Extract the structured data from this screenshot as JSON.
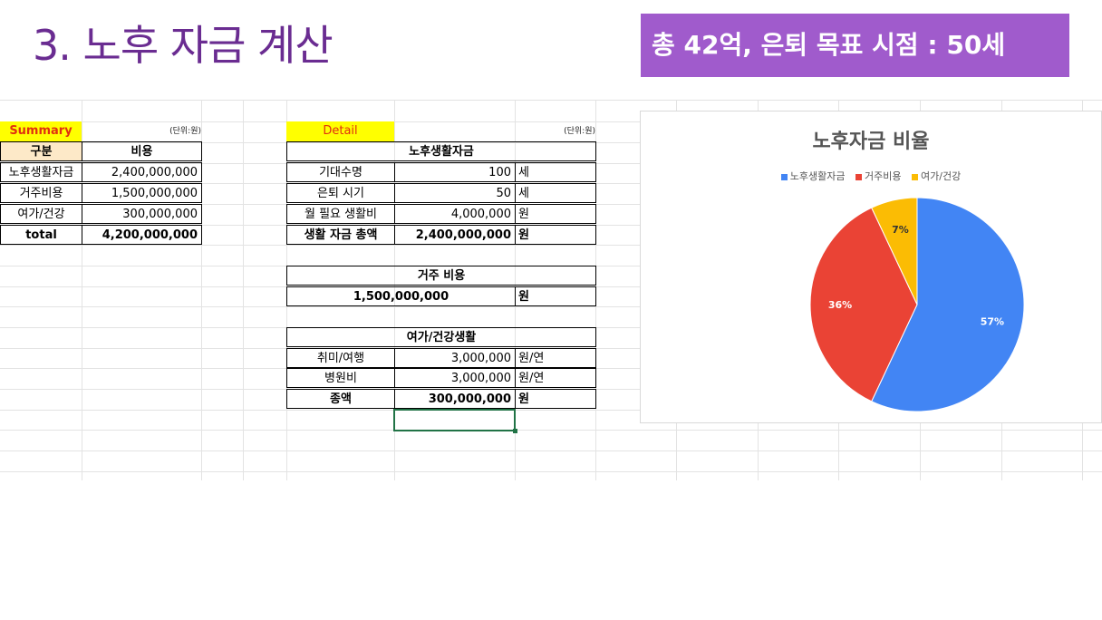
{
  "slide": {
    "title": "3. 노후 자금 계산",
    "banner": "총 42억, 은퇴 목표 시점  : 50세"
  },
  "summary": {
    "label": "Summary",
    "unit_note": "(단위:원)",
    "header": [
      "구분",
      "비용"
    ],
    "rows": [
      {
        "name": "노후생활자금",
        "value": "2,400,000,000"
      },
      {
        "name": "거주비용",
        "value": "1,500,000,000"
      },
      {
        "name": "여가/건강",
        "value": "300,000,000"
      },
      {
        "name": "total",
        "value": "4,200,000,000"
      }
    ]
  },
  "detail": {
    "label": "Detail",
    "unit_note": "(단위:원)",
    "living": {
      "title": "노후생활자금",
      "rows": [
        {
          "name": "기대수명",
          "value": "100",
          "unit": "세"
        },
        {
          "name": "은퇴 시기",
          "value": "50",
          "unit": "세"
        },
        {
          "name": "월 필요 생활비",
          "value": "4,000,000",
          "unit": "원"
        },
        {
          "name": "생활 자금 총액",
          "value": "2,400,000,000",
          "unit": "원"
        }
      ]
    },
    "housing": {
      "title": "거주 비용",
      "value": "1,500,000,000",
      "unit": "원"
    },
    "leisure": {
      "title": "여가/건강생활",
      "rows": [
        {
          "name": "취미/여행",
          "value": "3,000,000",
          "unit": "원/연"
        },
        {
          "name": "병원비",
          "value": "3,000,000",
          "unit": "원/연"
        },
        {
          "name": "종액",
          "value": "300,000,000",
          "unit": "원"
        }
      ]
    }
  },
  "chart_data": {
    "type": "pie",
    "title": "노후자금 비율",
    "legend_position": "top",
    "categories": [
      "노후생활자금",
      "거주비용",
      "여가/건강"
    ],
    "values": [
      57,
      36,
      7
    ],
    "labels": [
      "57%",
      "36%",
      "7%"
    ],
    "colors": [
      "#4285f4",
      "#ea4335",
      "#fbbc04"
    ]
  }
}
